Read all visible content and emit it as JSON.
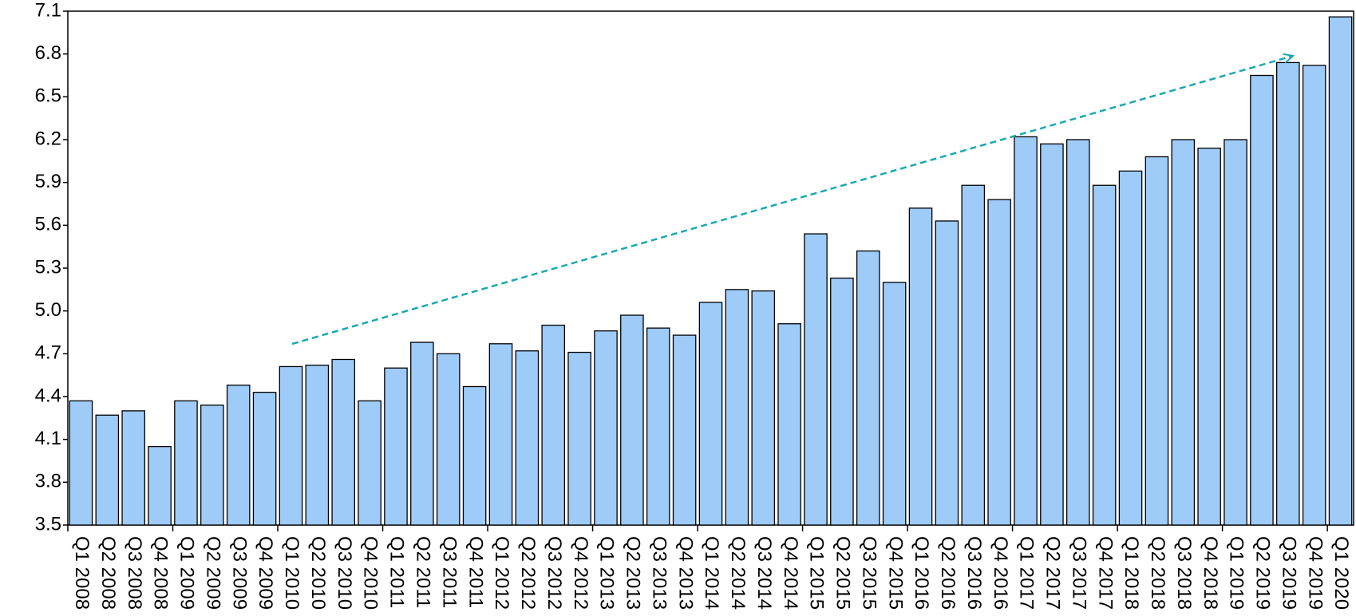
{
  "chart_data": {
    "type": "bar",
    "categories": [
      "Q1 2008",
      "Q2 2008",
      "Q3 2008",
      "Q4 2008",
      "Q1 2009",
      "Q2 2009",
      "Q3 2009",
      "Q4 2009",
      "Q1 2010",
      "Q2 2010",
      "Q3 2010",
      "Q4 2010",
      "Q1 2011",
      "Q2 2011",
      "Q3 2011",
      "Q4 2011",
      "Q1 2012",
      "Q2 2012",
      "Q3 2012",
      "Q4 2012",
      "Q1 2013",
      "Q2 2013",
      "Q3 2013",
      "Q4 2013",
      "Q1 2014",
      "Q2 2014",
      "Q3 2014",
      "Q4 2014",
      "Q1 2015",
      "Q2 2015",
      "Q3 2015",
      "Q4 2015",
      "Q1 2016",
      "Q2 2016",
      "Q3 2016",
      "Q4 2016",
      "Q1 2017",
      "Q2 2017",
      "Q3 2017",
      "Q4 2017",
      "Q1 2018",
      "Q2 2018",
      "Q3 2018",
      "Q4 2018",
      "Q1 2019",
      "Q2 2019",
      "Q3 2019",
      "Q4 2019",
      "Q1 2020"
    ],
    "values": [
      4.37,
      4.27,
      4.3,
      4.05,
      4.37,
      4.34,
      4.48,
      4.43,
      4.61,
      4.62,
      4.66,
      4.37,
      4.6,
      4.78,
      4.7,
      4.47,
      4.77,
      4.72,
      4.9,
      4.71,
      4.86,
      4.97,
      4.88,
      4.83,
      5.06,
      5.15,
      5.14,
      4.91,
      5.54,
      5.23,
      5.42,
      5.2,
      5.72,
      5.63,
      5.88,
      5.78,
      6.22,
      6.17,
      6.2,
      5.88,
      5.98,
      6.08,
      6.2,
      6.14,
      6.2,
      6.65,
      6.74,
      6.72,
      7.06
    ],
    "color": "#9ecbf8",
    "ylim": [
      3.5,
      7.1
    ],
    "yticks": [
      3.5,
      3.8,
      4.1,
      4.4,
      4.7,
      {
        "value": 5,
        "label": "5.0"
      },
      5.3,
      5.6,
      5.9,
      6.2,
      6.5,
      6.8,
      7.1
    ],
    "grid": false
  }
}
